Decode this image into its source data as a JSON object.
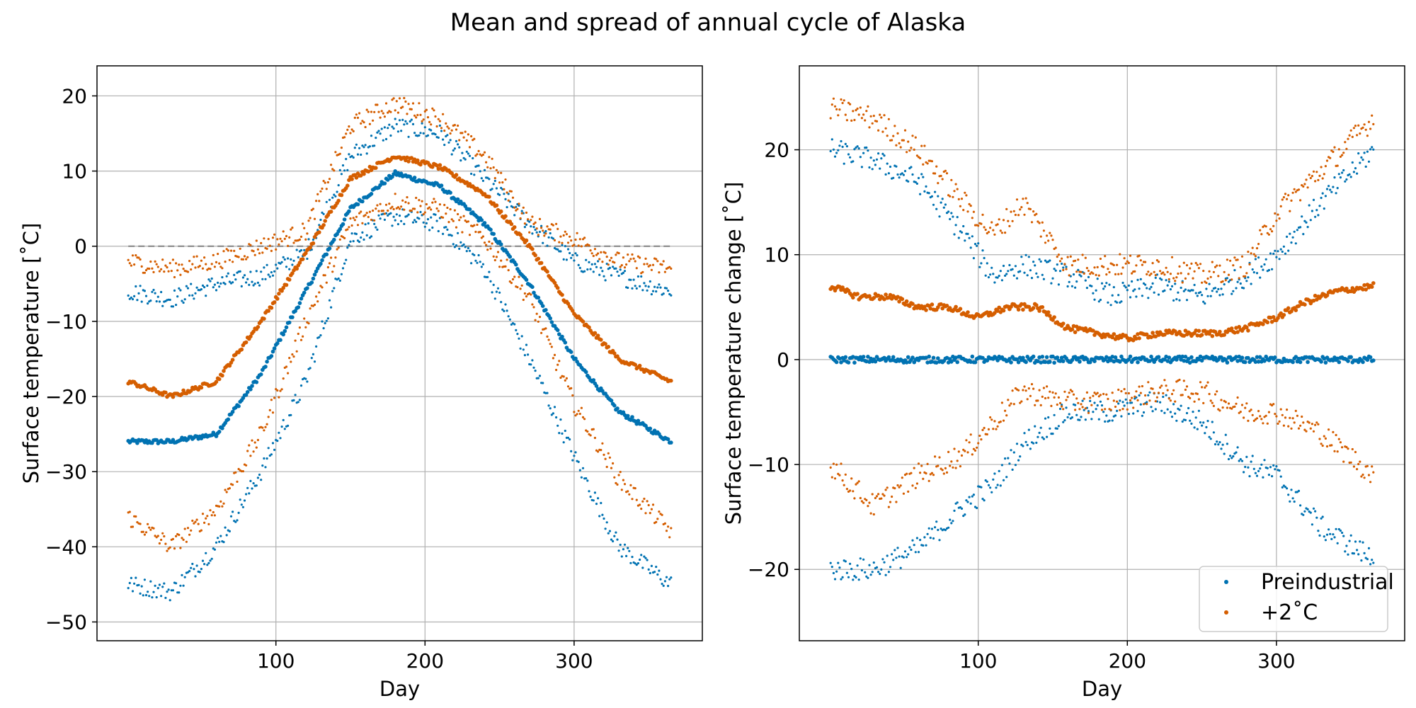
{
  "figure": {
    "title": "Mean and spread of annual cycle of Alaska"
  },
  "colors": {
    "preindustrial": "#0072b2",
    "plus2": "#d55e00",
    "grid": "#b0b0b0",
    "zero_line": "#808080"
  },
  "legend": {
    "location": "lower-right",
    "entries": [
      {
        "label": "Preindustrial",
        "color": "#0072b2"
      },
      {
        "label": "+2˚C",
        "color": "#d55e00"
      }
    ]
  },
  "chart_data": [
    {
      "type": "scatter",
      "panel": "left",
      "xlabel": "Day",
      "ylabel": "Surface temperature [˚C]",
      "xlim": [
        -20,
        386
      ],
      "ylim": [
        -52.5,
        24
      ],
      "xticks": [
        100,
        200,
        300
      ],
      "yticks": [
        -50,
        -40,
        -30,
        -20,
        -10,
        0,
        10,
        20
      ],
      "grid": true,
      "zero_line": {
        "y": 0,
        "x_range": [
          1,
          365
        ],
        "style": "dashed"
      },
      "series": [
        {
          "name": "Preindustrial",
          "role": "mean",
          "x": [
            1,
            30,
            60,
            90,
            120,
            150,
            180,
            210,
            240,
            270,
            300,
            330,
            365
          ],
          "y": [
            -26,
            -26,
            -25,
            -17,
            -6,
            5,
            9.7,
            8,
            3,
            -5,
            -15,
            -22,
            -26
          ]
        },
        {
          "name": "Preindustrial",
          "role": "upper",
          "x": [
            1,
            30,
            60,
            90,
            120,
            150,
            180,
            210,
            240,
            270,
            300,
            330,
            365
          ],
          "y": [
            -6,
            -7,
            -5,
            -4,
            -1,
            12,
            16,
            15,
            9,
            3,
            -2,
            -4,
            -6
          ]
        },
        {
          "name": "Preindustrial",
          "role": "lower",
          "x": [
            1,
            30,
            60,
            90,
            120,
            150,
            180,
            210,
            240,
            270,
            300,
            330,
            365
          ],
          "y": [
            -45,
            -46,
            -40,
            -30,
            -18,
            1,
            4,
            3,
            -3,
            -15,
            -28,
            -40,
            -45
          ]
        },
        {
          "name": "+2˚C",
          "role": "mean",
          "x": [
            1,
            30,
            60,
            90,
            120,
            150,
            180,
            210,
            240,
            270,
            300,
            330,
            365
          ],
          "y": [
            -18,
            -20,
            -18,
            -10,
            -1,
            9,
            12,
            10.5,
            7,
            0,
            -9,
            -15,
            -18
          ]
        },
        {
          "name": "+2˚C",
          "role": "upper",
          "x": [
            1,
            30,
            60,
            90,
            120,
            150,
            180,
            210,
            240,
            270,
            300,
            330,
            365
          ],
          "y": [
            -2,
            -3,
            -2,
            0,
            2,
            16,
            19,
            17,
            12,
            3,
            1,
            -2,
            -3
          ]
        },
        {
          "name": "+2˚C",
          "role": "lower",
          "x": [
            1,
            30,
            60,
            90,
            120,
            150,
            180,
            210,
            240,
            270,
            300,
            330,
            365
          ],
          "y": [
            -36,
            -40,
            -35,
            -25,
            -10,
            3,
            6,
            5,
            1,
            -7,
            -21,
            -31,
            -38
          ]
        }
      ]
    },
    {
      "type": "scatter",
      "panel": "right",
      "xlabel": "Day",
      "ylabel": "Surface temperature change [˚C]",
      "xlim": [
        -20,
        386
      ],
      "ylim": [
        -26.8,
        28
      ],
      "xticks": [
        100,
        200,
        300
      ],
      "yticks": [
        -20,
        -10,
        0,
        10,
        20
      ],
      "grid": true,
      "series": [
        {
          "name": "Preindustrial",
          "role": "mean",
          "x": [
            1,
            365
          ],
          "y": [
            0,
            0
          ]
        },
        {
          "name": "Preindustrial",
          "role": "upper",
          "x": [
            1,
            30,
            60,
            90,
            110,
            130,
            160,
            190,
            220,
            250,
            280,
            300,
            330,
            365
          ],
          "y": [
            20,
            19,
            17,
            12,
            8,
            9,
            8,
            6,
            7,
            6,
            8,
            10,
            15,
            20
          ]
        },
        {
          "name": "Preindustrial",
          "role": "lower",
          "x": [
            1,
            30,
            60,
            90,
            110,
            130,
            160,
            190,
            220,
            250,
            280,
            300,
            330,
            365
          ],
          "y": [
            -20,
            -20,
            -18,
            -14,
            -12,
            -8,
            -5,
            -5,
            -4,
            -6,
            -10,
            -11,
            -16,
            -19
          ]
        },
        {
          "name": "+2˚C",
          "role": "mean",
          "x": [
            1,
            20,
            40,
            60,
            80,
            100,
            120,
            140,
            160,
            180,
            200,
            220,
            240,
            260,
            280,
            300,
            320,
            340,
            365
          ],
          "y": [
            7,
            6,
            6,
            5,
            5,
            4,
            5,
            5,
            3,
            2.5,
            2,
            2.5,
            2.5,
            2.5,
            3,
            4,
            5.5,
            6.5,
            7
          ]
        },
        {
          "name": "+2˚C",
          "role": "upper",
          "x": [
            1,
            30,
            60,
            90,
            110,
            130,
            160,
            190,
            220,
            250,
            280,
            300,
            330,
            365
          ],
          "y": [
            24,
            23,
            20,
            15,
            12,
            15,
            9,
            9,
            9,
            8,
            9,
            14,
            18,
            23
          ]
        },
        {
          "name": "+2˚C",
          "role": "lower",
          "x": [
            1,
            30,
            60,
            90,
            110,
            130,
            160,
            190,
            220,
            250,
            280,
            300,
            330,
            365
          ],
          "y": [
            -10,
            -14,
            -11,
            -9,
            -6,
            -3,
            -4,
            -4,
            -3,
            -3,
            -5,
            -5,
            -7,
            -11
          ]
        }
      ]
    }
  ]
}
